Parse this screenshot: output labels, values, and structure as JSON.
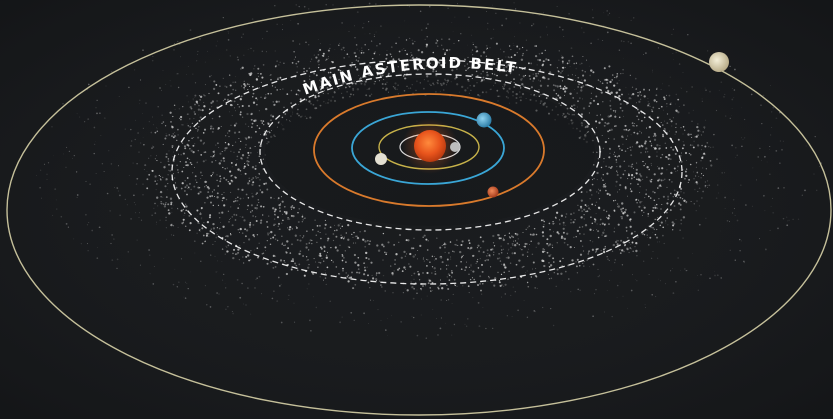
{
  "labels": {
    "belt": "MAIN ASTEROID BELT"
  },
  "colors": {
    "background": "#1a1c1e",
    "sun": "#e8541c",
    "mercury_orbit": "#ffffff",
    "venus_orbit": "#c7b24a",
    "earth_orbit": "#3aa6d6",
    "mars_orbit": "#d97a2c",
    "jupiter_orbit": "#d8d3a8",
    "belt_boundary": "#ffffff",
    "asteroids": "#d9d9d9"
  },
  "bodies": [
    {
      "name": "Sun"
    },
    {
      "name": "Mercury"
    },
    {
      "name": "Venus"
    },
    {
      "name": "Earth"
    },
    {
      "name": "Mars"
    },
    {
      "name": "Jupiter"
    }
  ]
}
